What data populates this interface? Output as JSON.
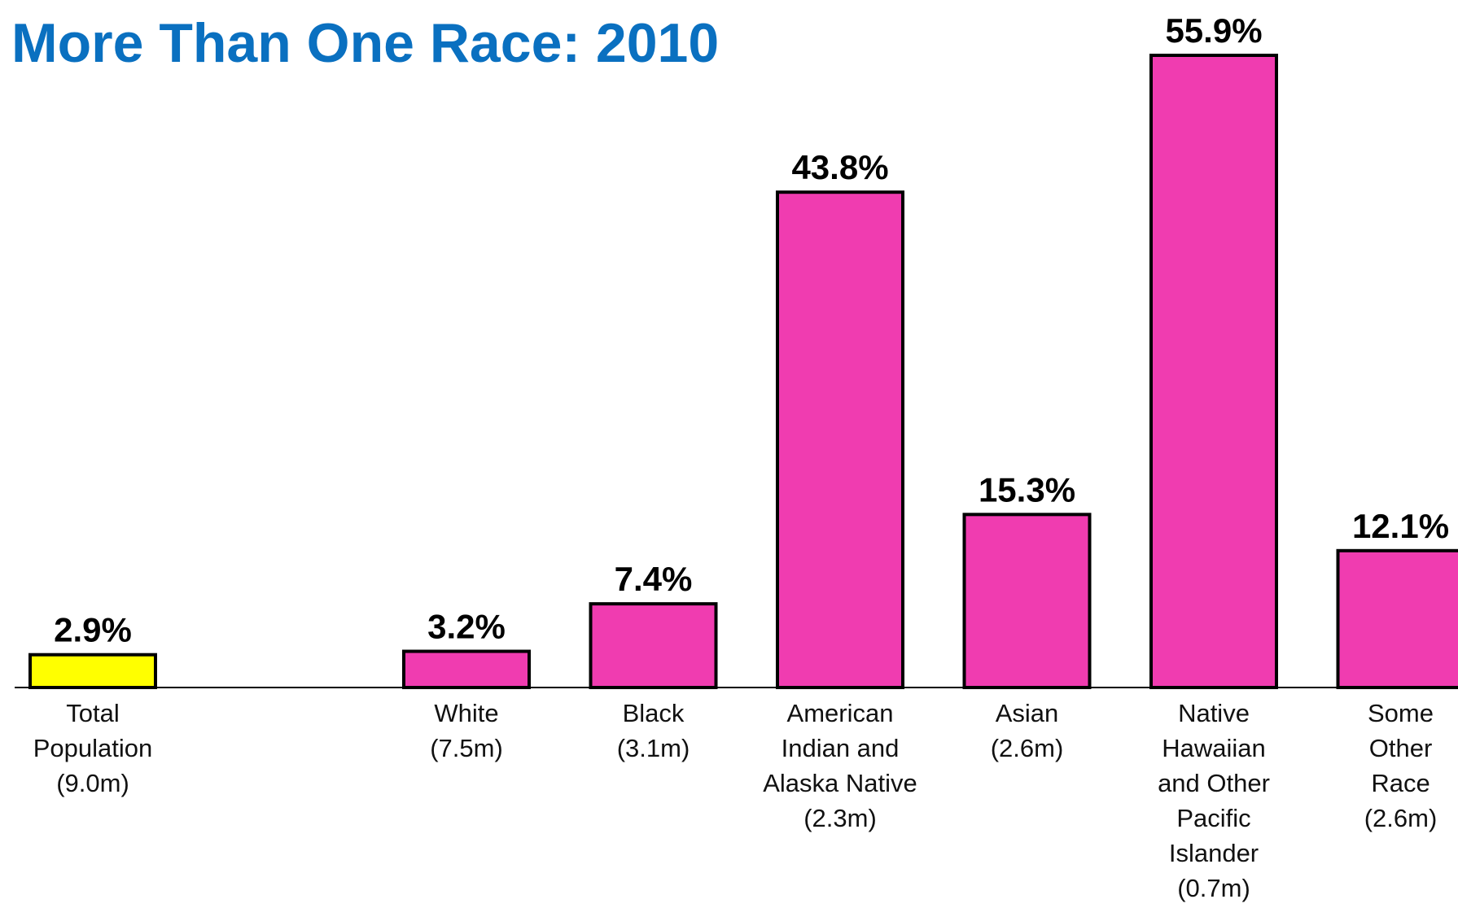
{
  "chart_data": {
    "type": "bar",
    "title": "More Than One Race: 2010",
    "categories": [
      "Total\nPopulation\n(9.0m)",
      null,
      "White\n(7.5m)",
      "Black\n(3.1m)",
      "American\nIndian and\nAlaska Native\n(2.3m)",
      "Asian\n(2.6m)",
      "Native\nHawaiian\nand Other\nPacific\nIslander\n(0.7m)",
      "Some\nOther\nRace\n(2.6m)"
    ],
    "values": [
      2.9,
      null,
      3.2,
      7.4,
      43.8,
      15.3,
      55.9,
      12.1
    ],
    "value_labels": [
      "2.9%",
      null,
      "3.2%",
      "7.4%",
      "43.8%",
      "15.3%",
      "55.9%",
      "12.1%"
    ],
    "colors": [
      "#ffff00",
      null,
      "#f03cb0",
      "#f03cb0",
      "#f03cb0",
      "#f03cb0",
      "#f03cb0",
      "#f03cb0"
    ]
  }
}
